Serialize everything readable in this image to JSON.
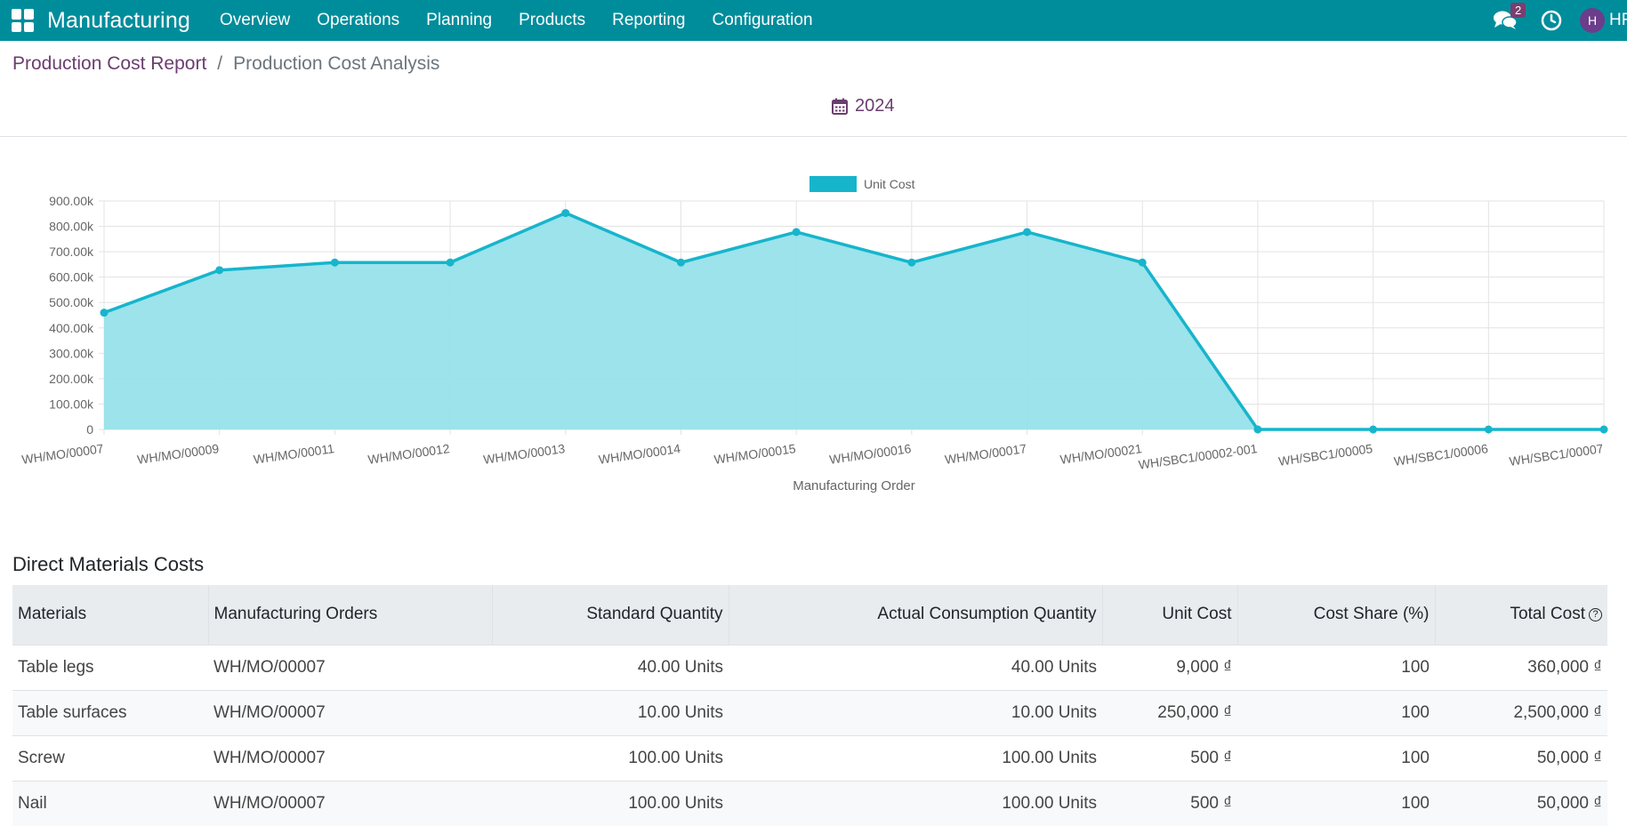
{
  "navbar": {
    "brand": "Manufacturing",
    "menu": [
      "Overview",
      "Operations",
      "Planning",
      "Products",
      "Reporting",
      "Configuration"
    ],
    "chat_badge": "2",
    "avatar_initial": "H",
    "user_name": "HR"
  },
  "breadcrumb": {
    "parent": "Production Cost Report",
    "separator": "/",
    "current": "Production Cost Analysis"
  },
  "date_filter": {
    "label": "2024",
    "icon": "calendar-icon"
  },
  "colors": {
    "navbar": "#008d9b",
    "accent": "#6b3d6f",
    "series": "#16b5cc",
    "series_fill": "#97e1ea"
  },
  "chart_data": {
    "type": "area",
    "title": "",
    "xlabel": "Manufacturing Order",
    "ylabel": "",
    "ylim": [
      0,
      900000
    ],
    "yticks": [
      "0",
      "100.00k",
      "200.00k",
      "300.00k",
      "400.00k",
      "500.00k",
      "600.00k",
      "700.00k",
      "800.00k",
      "900.00k"
    ],
    "legend_position": "top-center",
    "grid": true,
    "categories": [
      "WH/MO/00007",
      "WH/MO/00009",
      "WH/MO/00011",
      "WH/MO/00012",
      "WH/MO/00013",
      "WH/MO/00014",
      "WH/MO/00015",
      "WH/MO/00016",
      "WH/MO/00017",
      "WH/MO/00021",
      "WH/SBC1/00002-001",
      "WH/SBC1/00005",
      "WH/SBC1/00006",
      "WH/SBC1/00007"
    ],
    "series": [
      {
        "name": "Unit Cost",
        "values": [
          460000,
          627500,
          657500,
          657500,
          852500,
          657500,
          777500,
          657500,
          777500,
          657500,
          0,
          0,
          0,
          0
        ]
      }
    ]
  },
  "section_title": "Direct Materials Costs",
  "table": {
    "headers": [
      "Materials",
      "Manufacturing Orders",
      "Standard Quantity",
      "Actual Consumption Quantity",
      "Unit Cost",
      "Cost Share (%)",
      "Total Cost"
    ],
    "rows": [
      [
        "Table legs",
        "WH/MO/00007",
        "40.00 Units",
        "40.00 Units",
        "9,000 ₫",
        "100",
        "360,000 ₫"
      ],
      [
        "Table surfaces",
        "WH/MO/00007",
        "10.00 Units",
        "10.00 Units",
        "250,000 ₫",
        "100",
        "2,500,000 ₫"
      ],
      [
        "Screw",
        "WH/MO/00007",
        "100.00 Units",
        "100.00 Units",
        "500 ₫",
        "100",
        "50,000 ₫"
      ],
      [
        "Nail",
        "WH/MO/00007",
        "100.00 Units",
        "100.00 Units",
        "500 ₫",
        "100",
        "50,000 ₫"
      ]
    ]
  }
}
